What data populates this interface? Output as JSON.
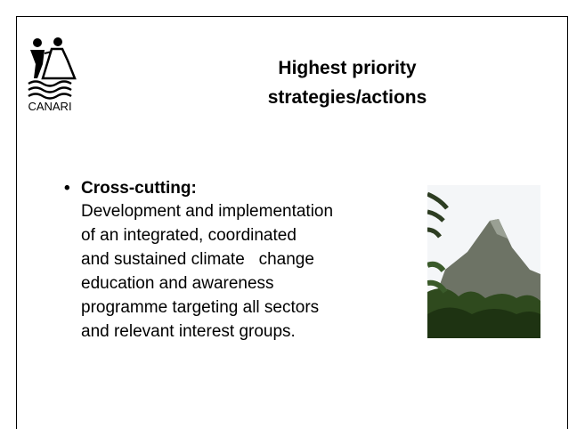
{
  "logo": {
    "text": "CANARI"
  },
  "title": {
    "lines": [
      "Highest priority",
      "strategies/actions"
    ]
  },
  "bullet": {
    "heading": "Cross-cutting:",
    "lines": [
      "Development and implementation",
      "of an integrated, coordinated",
      "and sustained climate   change",
      "education and awareness",
      "programme targeting all sectors",
      "and relevant interest groups."
    ]
  }
}
